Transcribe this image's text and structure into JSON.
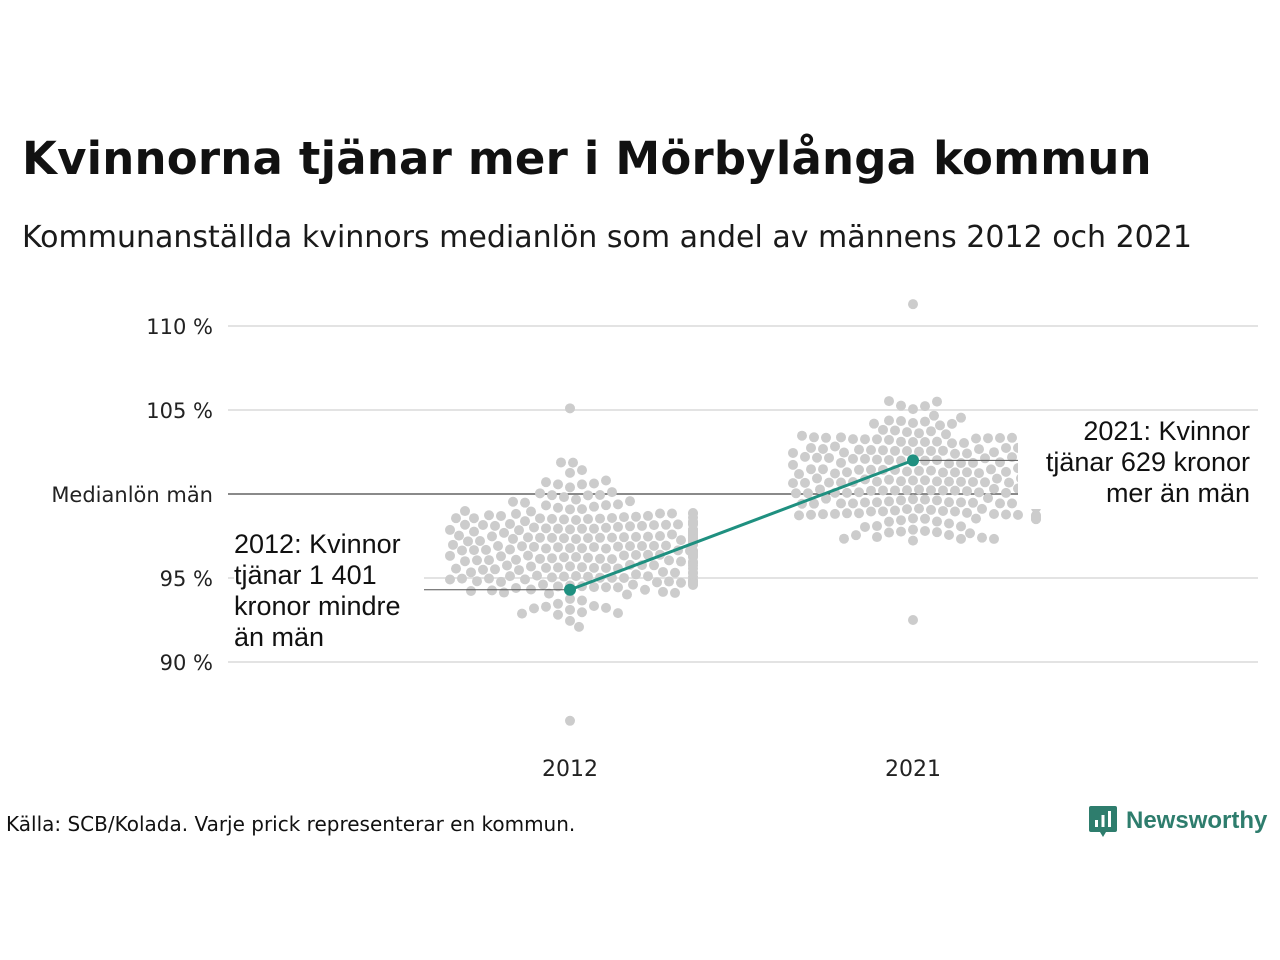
{
  "header": {
    "title": "Kvinnorna tjänar mer i Mörbylånga kommun",
    "subtitle": "Kommunanställda kvinnors medianlön som andel av männens 2012 och 2021"
  },
  "footer": {
    "source": "Källa: SCB/Kolada. Varje prick representerar en kommun.",
    "brand": "Newsworthy",
    "brand_icon": "newsworthy-logo-icon"
  },
  "annotations": {
    "y2012": [
      "2012: Kvinnor",
      "tjänar 1 401",
      "kronor mindre",
      "än män"
    ],
    "y2021": [
      "2021: Kvinnor",
      "tjänar 629 kronor",
      "mer än män"
    ]
  },
  "colors": {
    "highlight": "#1f9080",
    "dots": "#cccccc",
    "grid": "#e3e3e3",
    "reference": "#444444",
    "brand": "#2e7d6d"
  },
  "chart_data": {
    "type": "scatter",
    "variant": "beeswarm",
    "categories": [
      "2012",
      "2021"
    ],
    "y_ticks": [
      {
        "value": 90,
        "label": "90 %"
      },
      {
        "value": 95,
        "label": "95 %"
      },
      {
        "value": 100,
        "label": "Medianlön män"
      },
      {
        "value": 105,
        "label": "105 %"
      },
      {
        "value": 110,
        "label": "110 %"
      }
    ],
    "reference_value": 100,
    "ylim": [
      86,
      111.5
    ],
    "grid": true,
    "highlight": {
      "name": "Mörbylånga",
      "values": [
        94.3,
        102.0
      ]
    },
    "distribution": [
      {
        "category": "2012",
        "count": 290,
        "min": 86.5,
        "max": 105.1,
        "median": 96.8
      },
      {
        "category": "2021",
        "count": 290,
        "min": 92.5,
        "max": 111.3,
        "median": 100.8
      }
    ]
  }
}
